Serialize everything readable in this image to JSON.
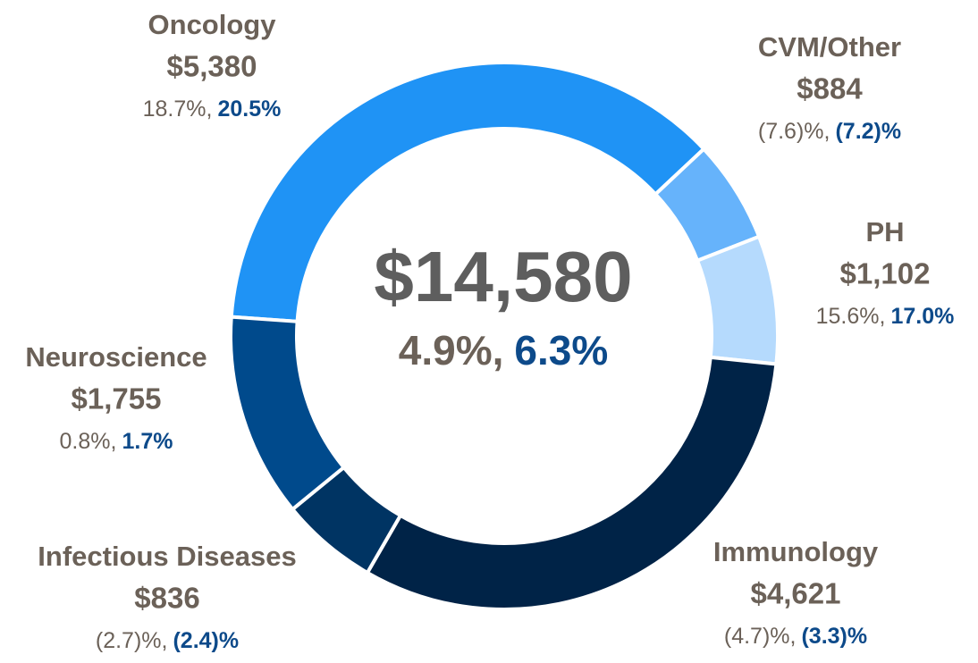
{
  "chart_data": {
    "type": "donut",
    "categories": [
      "Oncology",
      "CVM/Other",
      "PH",
      "Immunology",
      "Infectious Diseases",
      "Neuroscience"
    ],
    "values": [
      5380,
      884,
      1102,
      4621,
      836,
      1755
    ],
    "value_labels": [
      "$5,380",
      "$884",
      "$1,102",
      "$4,621",
      "$836",
      "$1,755"
    ],
    "colors": [
      "#1f93f5",
      "#66b3fb",
      "#b5dafd",
      "#002347",
      "#003463",
      "#004a8c"
    ],
    "growth": [
      18.7,
      -7.6,
      15.6,
      -4.7,
      -2.7,
      0.8
    ],
    "growth_labels": [
      "18.7%,",
      "(7.6)%,",
      "15.6%,",
      "(4.7)%,",
      "(2.7)%,",
      "0.8%,"
    ],
    "growth_cer": [
      20.5,
      -7.2,
      17.0,
      -3.3,
      -2.4,
      1.7
    ],
    "growth_cer_labels": [
      "20.5%",
      "(7.2)%",
      "17.0%",
      "(3.3)%",
      "(2.4)%",
      "1.7%"
    ],
    "total": 14580,
    "total_label": "$14,580",
    "total_growth": 4.9,
    "total_growth_label": "4.9%,",
    "total_growth_cer": 6.3,
    "total_growth_cer_label": "6.3%"
  }
}
